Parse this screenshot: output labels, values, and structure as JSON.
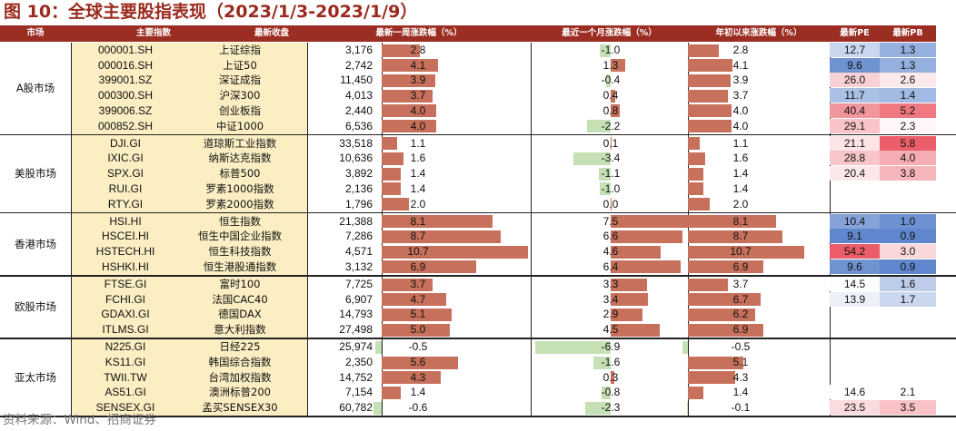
{
  "title": "图 10：全球主要股指表现（2023/1/3-2023/1/9）",
  "source": "资料来源：Wind、招商证券",
  "headers": {
    "market": "市场",
    "index": "主要指数",
    "close": "最新收盘",
    "week": "最新一周涨跌幅（%）",
    "month": "最近一个月涨跌幅（%）",
    "ytd": "年初以来涨跌幅（%）",
    "pe": "最新PE",
    "pb": "最新PB"
  },
  "groups": [
    {
      "name": "A股市场",
      "rows": [
        {
          "code": "000001.SH",
          "name": "上证综指",
          "close": "3,176",
          "week": "2.8",
          "month": "-1.0",
          "ytd": "2.8",
          "pe": "12.7",
          "pb": "1.3"
        },
        {
          "code": "000016.SH",
          "name": "上证50",
          "close": "2,742",
          "week": "4.1",
          "month": "1.3",
          "ytd": "4.1",
          "pe": "9.6",
          "pb": "1.3"
        },
        {
          "code": "399001.SZ",
          "name": "深证成指",
          "close": "11,450",
          "week": "3.9",
          "month": "-0.4",
          "ytd": "3.9",
          "pe": "26.0",
          "pb": "2.6"
        },
        {
          "code": "000300.SH",
          "name": "沪深300",
          "close": "4,013",
          "week": "3.7",
          "month": "0.4",
          "ytd": "3.7",
          "pe": "11.7",
          "pb": "1.4"
        },
        {
          "code": "399006.SZ",
          "name": "创业板指",
          "close": "2,440",
          "week": "4.0",
          "month": "0.8",
          "ytd": "4.0",
          "pe": "40.4",
          "pb": "5.2"
        },
        {
          "code": "000852.SH",
          "name": "中证1000",
          "close": "6,536",
          "week": "4.0",
          "month": "-2.2",
          "ytd": "4.0",
          "pe": "29.1",
          "pb": "2.3"
        }
      ]
    },
    {
      "name": "美股市场",
      "rows": [
        {
          "code": "DJI.GI",
          "name": "道琼斯工业指数",
          "close": "33,518",
          "week": "1.1",
          "month": "0.1",
          "ytd": "1.1",
          "pe": "21.1",
          "pb": "5.8"
        },
        {
          "code": "IXIC.GI",
          "name": "纳斯达克指数",
          "close": "10,636",
          "week": "1.6",
          "month": "-3.4",
          "ytd": "1.6",
          "pe": "28.8",
          "pb": "4.0"
        },
        {
          "code": "SPX.GI",
          "name": "标普500",
          "close": "3,892",
          "week": "1.4",
          "month": "-1.1",
          "ytd": "1.4",
          "pe": "20.4",
          "pb": "3.8"
        },
        {
          "code": "RUI.GI",
          "name": "罗素1000指数",
          "close": "2,136",
          "week": "1.4",
          "month": "-1.0",
          "ytd": "1.4",
          "pe": "",
          "pb": ""
        },
        {
          "code": "RTY.GI",
          "name": "罗素2000指数",
          "close": "1,796",
          "week": "2.0",
          "month": "0.0",
          "ytd": "2.0",
          "pe": "",
          "pb": ""
        }
      ]
    },
    {
      "name": "香港市场",
      "rows": [
        {
          "code": "HSI.HI",
          "name": "恒生指数",
          "close": "21,388",
          "week": "8.1",
          "month": "7.5",
          "ytd": "8.1",
          "pe": "10.4",
          "pb": "1.0"
        },
        {
          "code": "HSCEI.HI",
          "name": "恒生中国企业指数",
          "close": "7,286",
          "week": "8.7",
          "month": "6.6",
          "ytd": "8.7",
          "pe": "9.1",
          "pb": "0.9"
        },
        {
          "code": "HSTECH.HI",
          "name": "恒生科技指数",
          "close": "4,571",
          "week": "10.7",
          "month": "4.6",
          "ytd": "10.7",
          "pe": "54.2",
          "pb": "3.0"
        },
        {
          "code": "HSHKI.HI",
          "name": "恒生港股通指数",
          "close": "3,132",
          "week": "6.9",
          "month": "6.4",
          "ytd": "6.9",
          "pe": "9.6",
          "pb": "0.9"
        }
      ]
    },
    {
      "name": "欧股市场",
      "rows": [
        {
          "code": "FTSE.GI",
          "name": "富时100",
          "close": "7,725",
          "week": "3.7",
          "month": "3.3",
          "ytd": "3.7",
          "pe": "14.5",
          "pb": "1.6"
        },
        {
          "code": "FCHI.GI",
          "name": "法国CAC40",
          "close": "6,907",
          "week": "4.7",
          "month": "3.4",
          "ytd": "6.7",
          "pe": "13.9",
          "pb": "1.7"
        },
        {
          "code": "GDAXI.GI",
          "name": "德国DAX",
          "close": "14,793",
          "week": "5.1",
          "month": "2.9",
          "ytd": "6.2",
          "pe": "",
          "pb": ""
        },
        {
          "code": "ITLMS.GI",
          "name": "意大利指数",
          "close": "27,498",
          "week": "5.0",
          "month": "4.5",
          "ytd": "6.9",
          "pe": "",
          "pb": ""
        }
      ]
    },
    {
      "name": "亚太市场",
      "rows": [
        {
          "code": "N225.GI",
          "name": "日经225",
          "close": "25,974",
          "week": "-0.5",
          "month": "-6.9",
          "ytd": "-0.5",
          "pe": "",
          "pb": ""
        },
        {
          "code": "KS11.GI",
          "name": "韩国综合指数",
          "close": "2,350",
          "week": "5.6",
          "month": "-1.6",
          "ytd": "5.1",
          "pe": "",
          "pb": ""
        },
        {
          "code": "TWII.TW",
          "name": "台湾加权指数",
          "close": "14,752",
          "week": "4.3",
          "month": "0.3",
          "ytd": "4.3",
          "pe": "",
          "pb": ""
        },
        {
          "code": "AS51.GI",
          "name": "澳洲标普200",
          "close": "7,154",
          "week": "1.4",
          "month": "-0.8",
          "ytd": "1.4",
          "pe": "14.6",
          "pb": "2.1"
        },
        {
          "code": "SENSEX.GI",
          "name": "孟买SENSEX30",
          "close": "60,782",
          "week": "-0.6",
          "month": "-2.3",
          "ytd": "-0.1",
          "pe": "23.5",
          "pb": "3.5"
        }
      ]
    }
  ],
  "colors": {
    "header_bg": "#9b2d22",
    "index_bg": "#fbeec3",
    "bar_pos": "#c7705b",
    "bar_neg": "#c5e0b4",
    "scale_low": "#4472c4",
    "scale_mid": "#ffffff",
    "scale_high": "#e8414e",
    "title": "#9a2a1e"
  }
}
